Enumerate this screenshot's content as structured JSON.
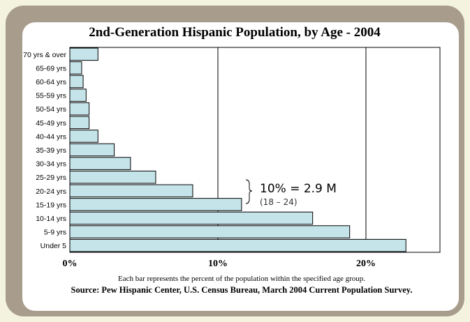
{
  "chart_data": {
    "type": "bar",
    "orientation": "horizontal",
    "title": "2nd-Generation Hispanic Population, by Age - 2004",
    "categories": [
      "70 yrs & over",
      "65-69 yrs",
      "60-64 yrs",
      "55-59 yrs",
      "50-54 yrs",
      "45-49 yrs",
      "40-44 yrs",
      "35-39 yrs",
      "30-34 yrs",
      "25-29 yrs",
      "20-24 yrs",
      "15-19 yrs",
      "10-14 yrs",
      "5-9 yrs",
      "Under 5"
    ],
    "values": [
      1.9,
      0.8,
      0.9,
      1.1,
      1.3,
      1.3,
      1.9,
      3.0,
      4.1,
      5.8,
      8.3,
      11.6,
      16.4,
      18.9,
      22.7
    ],
    "unit": "%",
    "xlim": [
      0,
      25
    ],
    "xticks": [
      {
        "value": 0,
        "label": "0%"
      },
      {
        "value": 10,
        "label": "10%"
      },
      {
        "value": 20,
        "label": "20%"
      }
    ],
    "gridlines": [
      10,
      20
    ],
    "bar_color": "#c4e4ea",
    "annotation": {
      "main": "10% = 2.9 M",
      "sub": "(18 – 24)",
      "applies_to": [
        "20-24 yrs",
        "15-19 yrs"
      ]
    },
    "note": "Each bar represents the percent of the population within the specified age group.",
    "source": "Source: Pew Hispanic Center, U.S. Census Bureau, March 2004 Current Population Survey."
  }
}
